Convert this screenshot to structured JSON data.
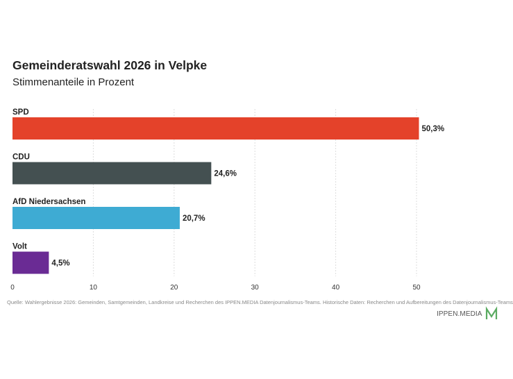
{
  "title": "Gemeinderatswahl 2026 in Velpke",
  "subtitle": "Stimmenanteile in Prozent",
  "source": "Quelle: Wahlergebnisse 2026: Gemeinden, Samtgemeinden, Landkreise und Recherchen des IPPEN.MEDIA Datenjournalismus-Teams. Historische Daten: Recherchen und Aufbereitungen des Datenjournalismus-Teams",
  "logo": {
    "text": "IPPEN.MEDIA",
    "accent_color": "#5aab61"
  },
  "chart_data": {
    "type": "bar",
    "orientation": "horizontal",
    "categories": [
      "SPD",
      "CDU",
      "AfD Niedersachsen",
      "Volt"
    ],
    "values": [
      50.3,
      24.6,
      20.7,
      4.5
    ],
    "value_labels": [
      "50,3%",
      "24,6%",
      "20,7%",
      "4,5%"
    ],
    "colors": [
      "#e4422a",
      "#445051",
      "#3eabd3",
      "#6a2b94"
    ],
    "xlim": [
      0,
      50
    ],
    "xticks": [
      "0",
      "10",
      "20",
      "30",
      "40",
      "50"
    ],
    "xtick_values": [
      0,
      10,
      20,
      30,
      40,
      50
    ],
    "grid": true
  }
}
